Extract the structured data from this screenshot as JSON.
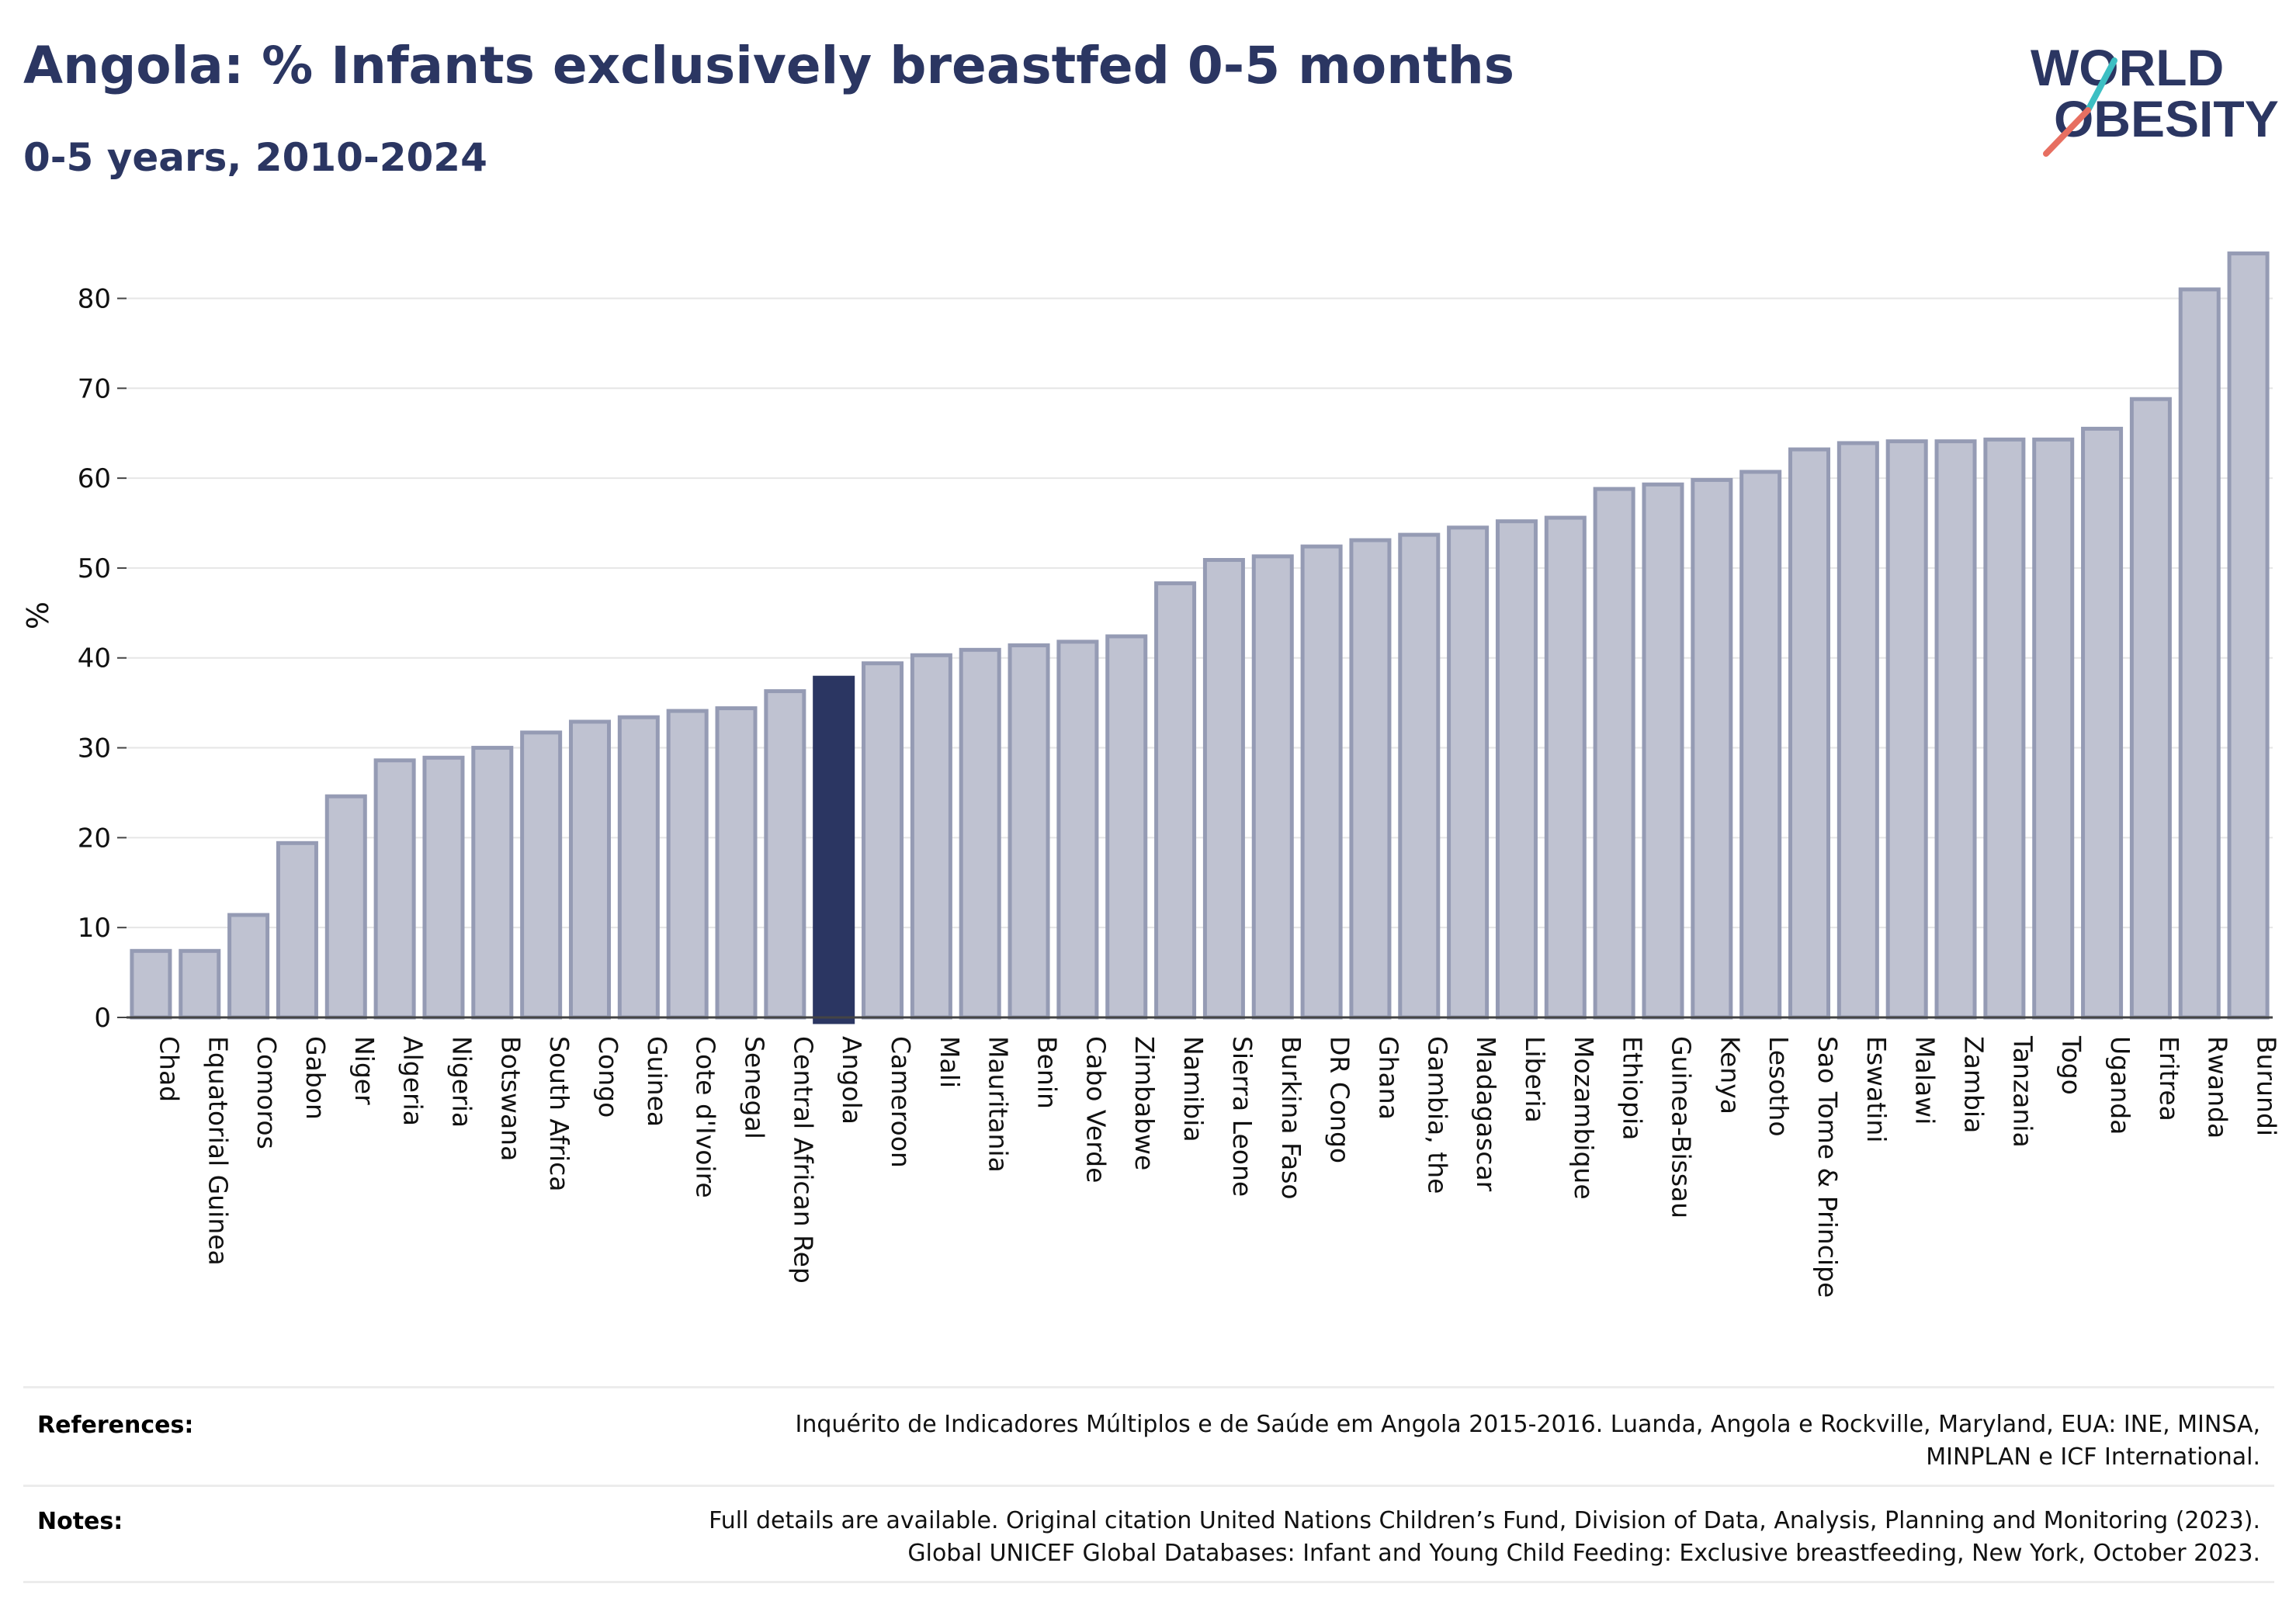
{
  "header": {
    "title": "Angola: % Infants exclusively breastfed 0-5 months",
    "subtitle": "0-5 years, 2010-2024"
  },
  "logo": {
    "line1": "WORLD",
    "line2": "OBESITY"
  },
  "colors": {
    "highlight": "#2b3662",
    "bar_fill": "#bfc2d1",
    "bar_stroke": "#959bb4",
    "title": "#2b3662",
    "logo_teal": "#3dbfc3",
    "logo_coral": "#e76f61"
  },
  "chart_data": {
    "type": "bar",
    "title": "Angola: % Infants exclusively breastfed 0-5 months",
    "subtitle": "0-5 years, 2010-2024",
    "xlabel": "",
    "ylabel": "%",
    "ylim": [
      0,
      86
    ],
    "yticks": [
      0,
      10,
      20,
      30,
      40,
      50,
      60,
      70,
      80
    ],
    "grid": true,
    "highlight": "Angola",
    "categories": [
      "Chad",
      "Equatorial Guinea",
      "Comoros",
      "Gabon",
      "Niger",
      "Algeria",
      "Nigeria",
      "Botswana",
      "South Africa",
      "Congo",
      "Guinea",
      "Cote d'Ivoire",
      "Senegal",
      "Central African Rep",
      "Angola",
      "Cameroon",
      "Mali",
      "Mauritania",
      "Benin",
      "Cabo Verde",
      "Zimbabwe",
      "Namibia",
      "Sierra Leone",
      "Burkina Faso",
      "DR Congo",
      "Ghana",
      "Gambia, the",
      "Madagascar",
      "Liberia",
      "Mozambique",
      "Ethiopia",
      "Guinea-Bissau",
      "Kenya",
      "Lesotho",
      "Sao Tome & Principe",
      "Eswatini",
      "Malawi",
      "Zambia",
      "Tanzania",
      "Togo",
      "Uganda",
      "Eritrea",
      "Rwanda",
      "Burundi"
    ],
    "values": [
      7.4,
      7.4,
      11.4,
      19.4,
      24.6,
      28.6,
      28.9,
      30.0,
      31.7,
      32.9,
      33.4,
      34.1,
      34.4,
      36.3,
      37.8,
      39.4,
      40.3,
      40.9,
      41.4,
      41.8,
      42.4,
      48.3,
      50.9,
      51.3,
      52.4,
      53.1,
      53.7,
      54.5,
      55.2,
      55.6,
      58.8,
      59.3,
      59.8,
      60.7,
      63.2,
      63.9,
      64.1,
      64.1,
      64.3,
      64.3,
      65.5,
      68.8,
      81.0,
      85.0
    ]
  },
  "references": {
    "label": "References:",
    "lines": [
      "Inquérito de Indicadores Múltiplos e de Saúde em Angola 2015-2016. Luanda, Angola e Rockville, Maryland, EUA: INE, MINSA,",
      "MINPLAN e ICF International."
    ]
  },
  "notes": {
    "label": "Notes:",
    "lines": [
      "Full details are available. Original citation United Nations Children’s Fund, Division of Data, Analysis, Planning and Monitoring (2023).",
      "Global UNICEF Global Databases: Infant and Young Child Feeding: Exclusive breastfeeding, New York, October 2023."
    ]
  }
}
